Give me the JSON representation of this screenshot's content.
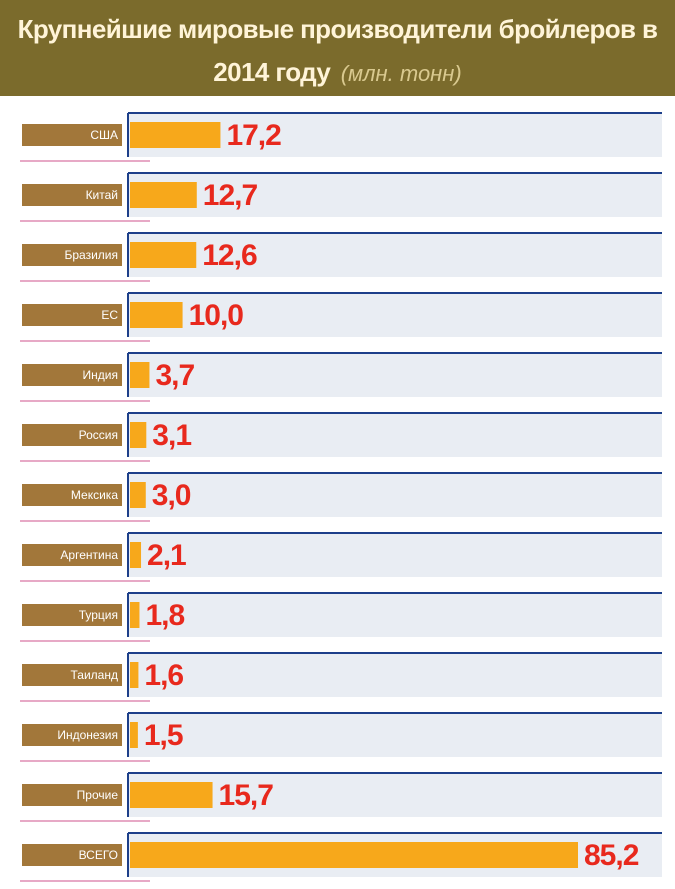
{
  "chart_data": {
    "type": "bar",
    "title": "Крупнейшие мировые производители бройлеров в 2014 году",
    "subtitle": "(млн. тонн)",
    "categories": [
      "США",
      "Китай",
      "Бразилия",
      "ЕС",
      "Индия",
      "Россия",
      "Мексика",
      "Аргентина",
      "Турция",
      "Таиланд",
      "Индонезия",
      "Прочие",
      "ВСЕГО"
    ],
    "values": [
      17.2,
      12.7,
      12.6,
      10.0,
      3.7,
      3.1,
      3.0,
      2.1,
      1.8,
      1.6,
      1.5,
      15.7,
      85.2
    ],
    "value_labels": [
      "17,2",
      "12,7",
      "12,6",
      "10,0",
      "3,7",
      "3,1",
      "3,0",
      "2,1",
      "1,8",
      "1,6",
      "1,5",
      "15,7",
      "85,2"
    ],
    "color": "#f7a81b"
  }
}
